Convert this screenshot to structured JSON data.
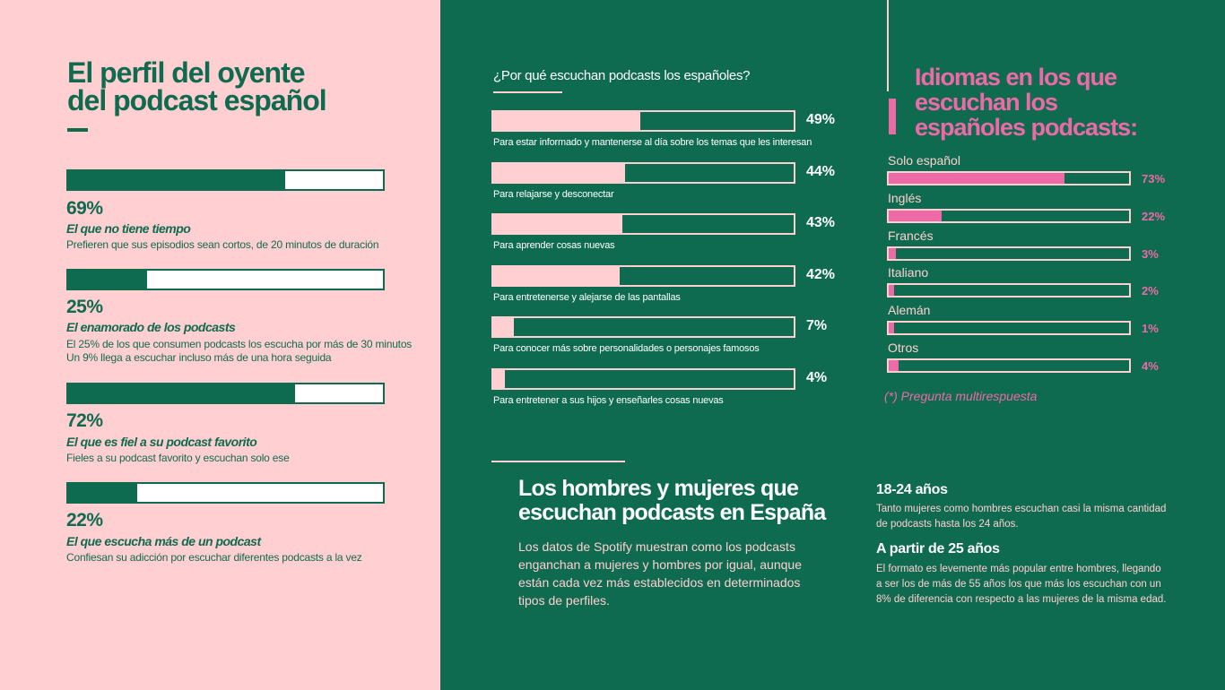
{
  "profile": {
    "title_lines": [
      "El perfil del oyente",
      "del podcast español"
    ],
    "items": [
      {
        "value": 69,
        "pct_label": "69%",
        "title": "El que no tiene tiempo",
        "desc_lines": [
          "Prefieren que sus episodios sean cortos, de 20 minutos de duración"
        ]
      },
      {
        "value": 25,
        "pct_label": "25%",
        "title": "El enamorado de los podcasts",
        "desc_lines": [
          "El 25% de los que consumen podcasts los escucha por más de 30 minutos",
          "Un 9% llega a escuchar incluso más de una hora seguida"
        ]
      },
      {
        "value": 72,
        "pct_label": "72%",
        "title": "El que es fiel a su podcast favorito",
        "desc_lines": [
          "Fieles a su podcast favorito y escuchan solo ese"
        ]
      },
      {
        "value": 22,
        "pct_label": "22%",
        "title": "El que escucha más de un podcast",
        "desc_lines": [
          "Confiesan su adicción por escuchar diferentes podcasts a la vez"
        ]
      }
    ]
  },
  "reasons": {
    "title": "¿Por qué escuchan podcasts los españoles?"
  },
  "languages": {
    "title_lines": [
      "Idiomas en los que",
      "escuchan los",
      "españoles podcasts:"
    ],
    "note": "(*) Pregunta multirespuesta"
  },
  "gender": {
    "title_lines": [
      "Los hombres y mujeres que",
      "escuchan podcasts en España"
    ],
    "text_lines": [
      "Los datos de Spotify muestran como los podcasts",
      "enganchan a mujeres y hombres por igual, aunque",
      "están cada vez más establecidos en determinados",
      "tipos de perfiles."
    ],
    "age_groups": [
      {
        "heading": "18-24 años",
        "text_lines": [
          "Tanto mujeres como hombres escuchan casi la misma cantidad",
          "de podcasts hasta los 24 años."
        ]
      },
      {
        "heading": "A partir de 25 años",
        "text_lines": [
          "El formato es levemente más popular entre hombres, llegando",
          "a ser los de más de 55 años los que más los escuchan con un",
          "8% de diferencia con respecto a las mujeres de la misma edad."
        ]
      }
    ]
  },
  "colors": {
    "green": "#0f6b4f",
    "light_pink": "#ffcfd2",
    "hot_pink": "#ee6aa7"
  },
  "chart_data": [
    {
      "type": "bar",
      "title": "¿Por qué escuchan podcasts los españoles?",
      "orientation": "horizontal",
      "unit": "%",
      "categories": [
        "Para estar informado y mantenerse al día sobre los temas que les interesan",
        "Para relajarse y desconectar",
        "Para aprender cosas nuevas",
        "Para entretenerse y alejarse de las pantallas",
        "Para conocer más sobre personalidades o personajes famosos",
        "Para entretener a sus hijos y enseñarles cosas nuevas"
      ],
      "values": [
        49,
        44,
        43,
        42,
        7,
        4
      ],
      "value_labels": [
        "49%",
        "44%",
        "43%",
        "42%",
        "7%",
        "4%"
      ],
      "xlim": [
        0,
        100
      ]
    },
    {
      "type": "bar",
      "title": "Idiomas en los que escuchan los españoles podcasts:",
      "orientation": "horizontal",
      "unit": "%",
      "categories": [
        "Solo español",
        "Inglés",
        "Francés",
        "Italiano",
        "Alemán",
        "Otros"
      ],
      "values": [
        73,
        22,
        3,
        2,
        1,
        4
      ],
      "value_labels": [
        "73%",
        "22%",
        "3%",
        "2%",
        "1%",
        "4%"
      ],
      "xlim": [
        0,
        100
      ],
      "note": "(*) Pregunta multirespuesta"
    }
  ]
}
